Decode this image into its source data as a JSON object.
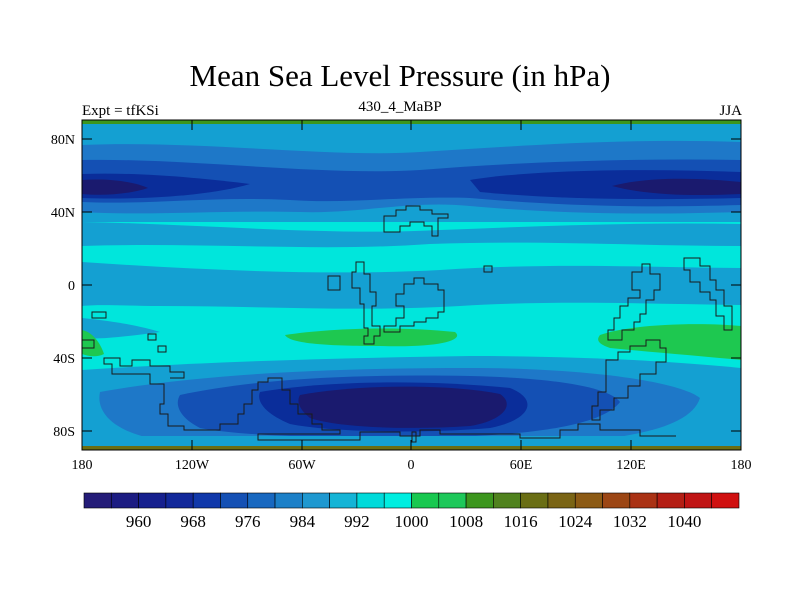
{
  "header": {
    "title": "Mean Sea Level Pressure (in hPa)",
    "left_label": "Expt = tfKSi",
    "center_label": "430_4_MaBP",
    "right_label": "JJA"
  },
  "map": {
    "projection": "cylindrical equidistant",
    "field": "mean sea level pressure",
    "units": "hPa",
    "lat_ticks": [
      "80N",
      "40N",
      "0",
      "40S",
      "80S"
    ],
    "lon_ticks": [
      "180",
      "120W",
      "60W",
      "0",
      "60E",
      "120E",
      "180"
    ],
    "colors": {
      "c956": "#1a1a6e",
      "c972": "#0a2d9a",
      "c980": "#1450b4",
      "c988": "#1e78c8",
      "c996": "#14a0d2",
      "c1002": "#00e6dc",
      "c1010": "#1ec850",
      "coast": "#1a1a1a"
    }
  },
  "colorbar": {
    "levels": [
      "960",
      "968",
      "976",
      "984",
      "992",
      "1000",
      "1008",
      "1016",
      "1024",
      "1032",
      "1040"
    ],
    "colors": [
      "#241c78",
      "#1c1c82",
      "#16208e",
      "#12289a",
      "#1038aa",
      "#1450b4",
      "#1868c0",
      "#1c80c8",
      "#1e98d0",
      "#14b4d6",
      "#00dada",
      "#00eee0",
      "#18c850",
      "#1ec85a",
      "#3c961e",
      "#50821e",
      "#6a6e14",
      "#7a6414",
      "#8c5a14",
      "#9c4614",
      "#aa3214",
      "#b41e14",
      "#c01414",
      "#d01010"
    ]
  }
}
